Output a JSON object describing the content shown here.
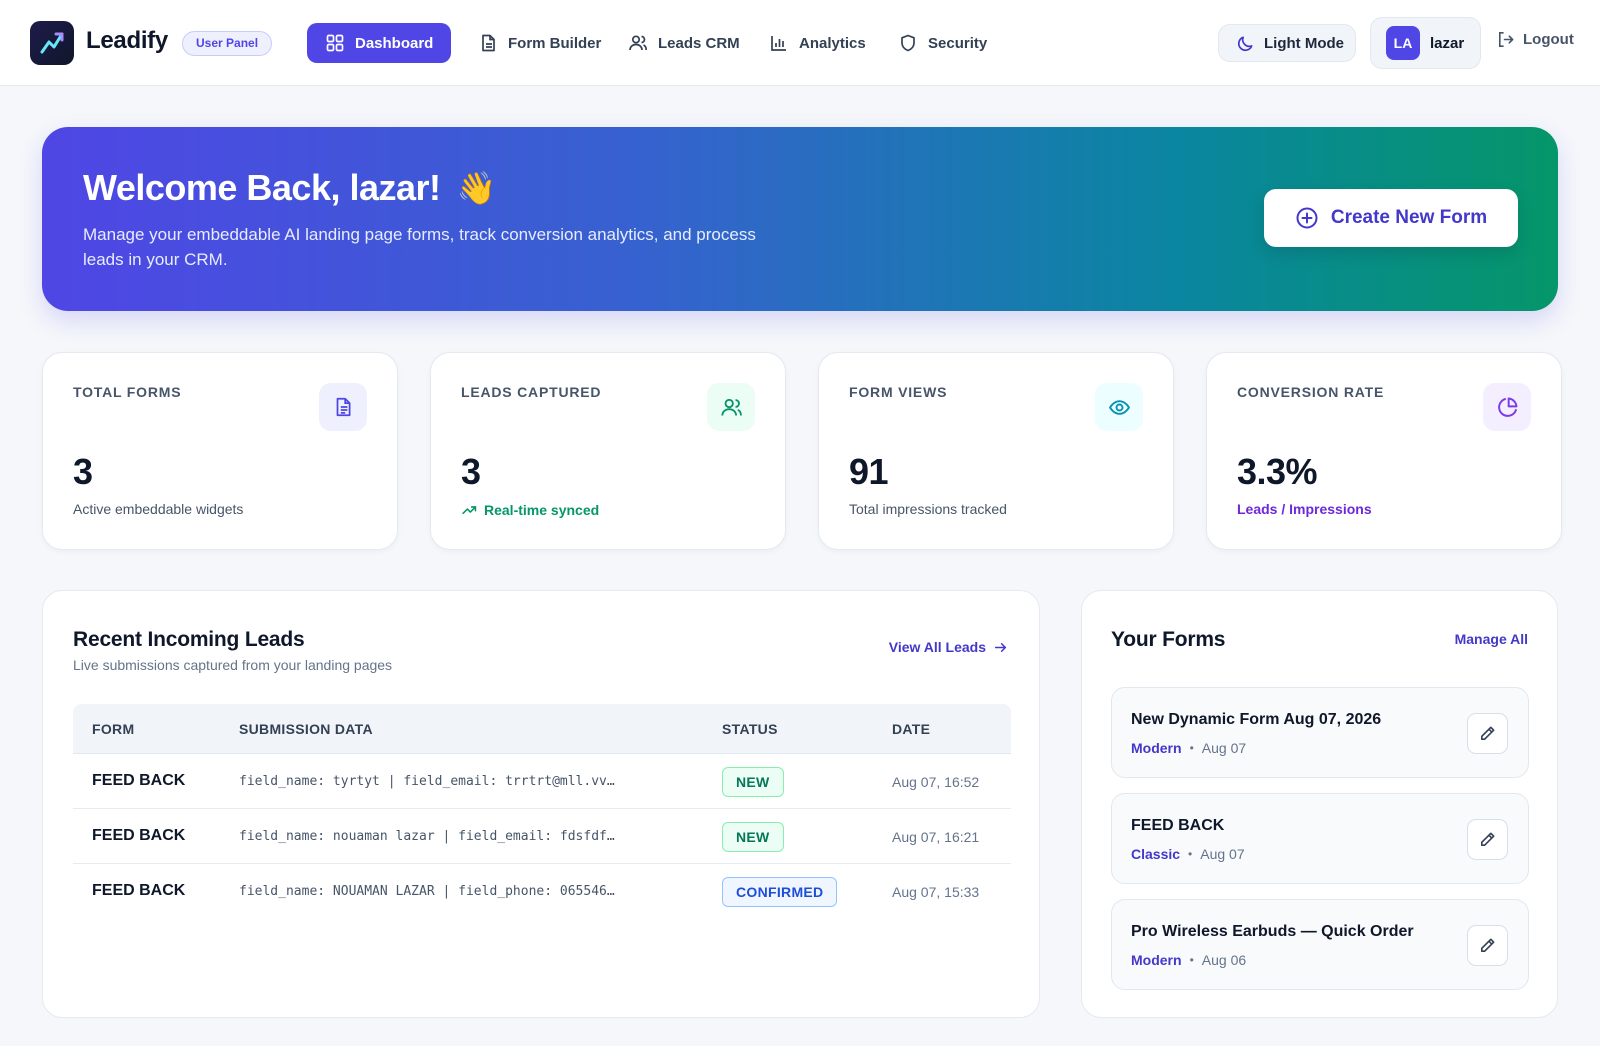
{
  "header": {
    "brand": "Leadify",
    "panel_badge": "User Panel",
    "nav": [
      {
        "label": "Dashboard",
        "icon": "dashboard-grid-icon",
        "active": true
      },
      {
        "label": "Form Builder",
        "icon": "document-icon"
      },
      {
        "label": "Leads CRM",
        "icon": "users-icon"
      },
      {
        "label": "Analytics",
        "icon": "bar-chart-icon"
      },
      {
        "label": "Security",
        "icon": "shield-icon"
      }
    ],
    "mode_toggle": "Light Mode",
    "user": {
      "initials": "LA",
      "name": "lazar"
    },
    "logout": "Logout"
  },
  "hero": {
    "title": "Welcome Back, lazar!",
    "emoji": "👋",
    "subtitle": "Manage your embeddable AI landing page forms, track conversion analytics, and process leads in your CRM.",
    "cta": "Create New Form"
  },
  "stats": [
    {
      "label": "TOTAL FORMS",
      "value": "3",
      "foot": "Active embeddable widgets",
      "icon": "document-icon",
      "accent": "#4f46e5",
      "icon_bg": "#eef0fe",
      "foot_color": "#475569"
    },
    {
      "label": "LEADS CAPTURED",
      "value": "3",
      "foot": "Real-time synced",
      "icon": "users-icon",
      "accent": "#059669",
      "icon_bg": "#ecfdf5",
      "foot_color": "#059669"
    },
    {
      "label": "FORM VIEWS",
      "value": "91",
      "foot": "Total impressions tracked",
      "icon": "eye-icon",
      "accent": "#0891b2",
      "icon_bg": "#ecfeff",
      "foot_color": "#475569"
    },
    {
      "label": "CONVERSION RATE",
      "value": "3.3%",
      "foot": "Leads / Impressions",
      "icon": "pie-chart-icon",
      "accent": "#7c3aed",
      "icon_bg": "#f3effe",
      "foot_color": "#6d28d9"
    }
  ],
  "recent_leads": {
    "title": "Recent Incoming Leads",
    "subtitle": "Live submissions captured from your landing pages",
    "view_all": "View All Leads",
    "columns": [
      "FORM",
      "SUBMISSION DATA",
      "STATUS",
      "DATE"
    ],
    "rows": [
      {
        "form": "FEED BACK",
        "data": "field_name: tyrtyt | field_email: trrtrt@mll.vv…",
        "status": "NEW",
        "date": "Aug 07, 16:52"
      },
      {
        "form": "FEED BACK",
        "data": "field_name: nouaman lazar | field_email: fdsfdf…",
        "status": "NEW",
        "date": "Aug 07, 16:21"
      },
      {
        "form": "FEED BACK",
        "data": "field_name: NOUAMAN LAZAR | field_phone: 065546…",
        "status": "CONFIRMED",
        "date": "Aug 07, 15:33"
      }
    ]
  },
  "your_forms": {
    "title": "Your Forms",
    "manage_all": "Manage All",
    "items": [
      {
        "name": "New Dynamic Form Aug 07, 2026",
        "style": "Modern",
        "date": "Aug 07"
      },
      {
        "name": "FEED BACK",
        "style": "Classic",
        "date": "Aug 07"
      },
      {
        "name": "Pro Wireless Earbuds — Quick Order",
        "style": "Modern",
        "date": "Aug 06"
      }
    ]
  }
}
